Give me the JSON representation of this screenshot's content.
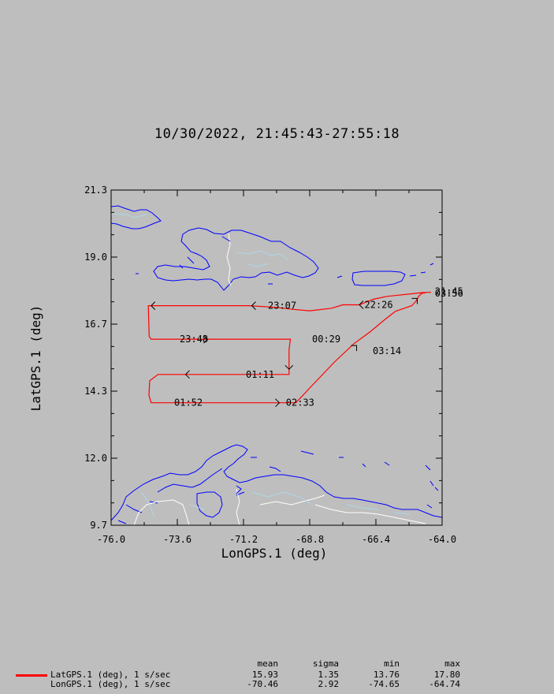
{
  "title": "10/30/2022, 21:45:43-27:55:18",
  "chart_data": {
    "type": "map-track",
    "xlabel": "LonGPS.1 (deg)",
    "ylabel": "LatGPS.1 (deg)",
    "xlim": [
      -76.0,
      -64.0
    ],
    "ylim": [
      9.7,
      21.3
    ],
    "x_ticks": [
      "-76.0",
      "-73.6",
      "-71.2",
      "-68.8",
      "-66.4",
      "-64.0"
    ],
    "y_ticks": [
      "9.7",
      "12.0",
      "14.3",
      "16.7",
      "19.0",
      "21.3"
    ],
    "track": {
      "name": "LatGPS.1 (deg), 1 s/sec",
      "color": "#ff0000",
      "points": [
        [
          -64.4,
          17.76
        ],
        [
          -64.55,
          17.76
        ],
        [
          -64.75,
          17.75
        ],
        [
          -65.2,
          17.7
        ],
        [
          -66.0,
          17.62
        ],
        [
          -66.5,
          17.52
        ],
        [
          -67.0,
          17.33
        ],
        [
          -67.6,
          17.33
        ],
        [
          -68.0,
          17.21
        ],
        [
          -68.8,
          17.12
        ],
        [
          -69.4,
          17.17
        ],
        [
          -70.0,
          17.24
        ],
        [
          -71.0,
          17.3
        ],
        [
          -72.0,
          17.3
        ],
        [
          -73.5,
          17.3
        ],
        [
          -74.65,
          17.3
        ],
        [
          -74.62,
          16.24
        ],
        [
          -74.55,
          16.14
        ],
        [
          -73.0,
          16.14
        ],
        [
          -71.0,
          16.14
        ],
        [
          -69.5,
          16.14
        ],
        [
          -69.55,
          15.78
        ],
        [
          -69.55,
          15.3
        ],
        [
          -69.55,
          14.92
        ],
        [
          -71.0,
          14.92
        ],
        [
          -72.5,
          14.92
        ],
        [
          -74.3,
          14.92
        ],
        [
          -74.6,
          14.7
        ],
        [
          -74.63,
          14.2
        ],
        [
          -74.55,
          13.94
        ],
        [
          -73.0,
          13.94
        ],
        [
          -71.0,
          13.94
        ],
        [
          -69.5,
          13.94
        ],
        [
          -69.3,
          13.94
        ],
        [
          -68.8,
          14.45
        ],
        [
          -67.9,
          15.35
        ],
        [
          -67.2,
          15.98
        ],
        [
          -66.6,
          16.4
        ],
        [
          -66.1,
          16.8
        ],
        [
          -65.7,
          17.1
        ],
        [
          -65.1,
          17.3
        ],
        [
          -64.95,
          17.45
        ],
        [
          -64.85,
          17.62
        ],
        [
          -64.75,
          17.72
        ],
        [
          -64.55,
          17.76
        ],
        [
          -64.4,
          17.76
        ]
      ]
    },
    "time_labels": [
      {
        "text": "23:07",
        "lon": -70.4,
        "lat": 17.3
      },
      {
        "text": "22:26",
        "lon": -66.9,
        "lat": 17.33
      },
      {
        "text": "23:48",
        "lon": -73.6,
        "lat": 16.14
      },
      {
        "text": "00:29",
        "lon": -68.8,
        "lat": 16.14
      },
      {
        "text": "01:11",
        "lon": -71.2,
        "lat": 14.92
      },
      {
        "text": "03:14",
        "lon": -66.6,
        "lat": 15.73
      },
      {
        "text": "01:52",
        "lon": -73.8,
        "lat": 13.94
      },
      {
        "text": "02:33",
        "lon": -69.75,
        "lat": 13.94
      },
      {
        "text": "21:45",
        "lon": -64.35,
        "lat": 17.79
      },
      {
        "text": "03:56",
        "lon": -64.35,
        "lat": 17.72
      }
    ],
    "arrows": [
      {
        "lon": -70.9,
        "lat": 17.3,
        "dir": "left"
      },
      {
        "lon": -67.0,
        "lat": 17.33,
        "dir": "left"
      },
      {
        "lon": -74.55,
        "lat": 17.3,
        "dir": "left"
      },
      {
        "lon": -72.5,
        "lat": 16.14,
        "dir": "right"
      },
      {
        "lon": -69.55,
        "lat": 15.1,
        "dir": "down"
      },
      {
        "lon": -73.3,
        "lat": 14.92,
        "dir": "left"
      },
      {
        "lon": -69.9,
        "lat": 13.94,
        "dir": "right"
      },
      {
        "lon": -67.1,
        "lat": 15.92,
        "dir": "upright"
      },
      {
        "lon": -64.9,
        "lat": 17.55,
        "dir": "upright"
      }
    ]
  },
  "stats": {
    "headers": {
      "mean": "mean",
      "sigma": "sigma",
      "min": "min",
      "max": "max"
    },
    "rows": [
      {
        "label": "LatGPS.1 (deg), 1 s/sec",
        "mean": "15.93",
        "sigma": "1.35",
        "min": "13.76",
        "max": "17.80",
        "color": "#ff0000"
      },
      {
        "label": "LonGPS.1 (deg), 1 s/sec",
        "mean": "-70.46",
        "sigma": "2.92",
        "min": "-74.65",
        "max": "-64.74"
      }
    ]
  }
}
